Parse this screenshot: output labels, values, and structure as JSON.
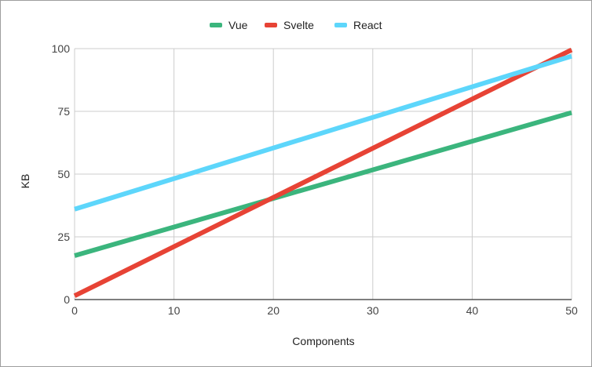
{
  "chart_data": {
    "type": "line",
    "title": "",
    "xlabel": "Components",
    "ylabel": "KB",
    "x": [
      0,
      50
    ],
    "xlim": [
      0,
      50
    ],
    "ylim": [
      0,
      100
    ],
    "xticks": [
      "0",
      "10",
      "20",
      "30",
      "40",
      "50"
    ],
    "yticks": [
      "0",
      "25",
      "50",
      "75",
      "100"
    ],
    "grid": true,
    "legend_position": "top",
    "series": [
      {
        "name": "Vue",
        "color": "#3bb57d",
        "values": [
          17.5,
          74.5
        ]
      },
      {
        "name": "Svelte",
        "color": "#e74335",
        "values": [
          1.5,
          99.5
        ]
      },
      {
        "name": "React",
        "color": "#5dd6fb",
        "values": [
          36,
          97
        ]
      }
    ]
  }
}
